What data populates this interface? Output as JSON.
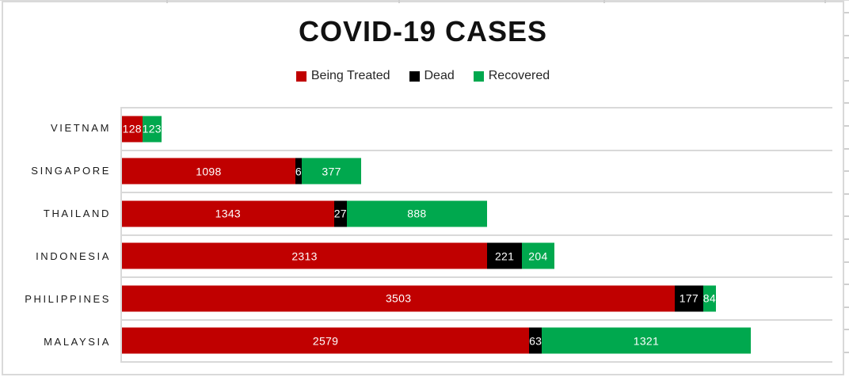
{
  "chart_data": {
    "type": "bar",
    "orientation": "horizontal",
    "stacked": true,
    "title": "COVID-19 CASES",
    "categories": [
      "VIETNAM",
      "SINGAPORE",
      "THAILAND",
      "INDONESIA",
      "PHILIPPINES",
      "MALAYSIA"
    ],
    "series": [
      {
        "name": "Being Treated",
        "color": "#c00000",
        "values": [
          128,
          1098,
          1343,
          2313,
          3503,
          2579
        ]
      },
      {
        "name": "Dead",
        "color": "#000000",
        "values": [
          0,
          6,
          27,
          221,
          177,
          63
        ]
      },
      {
        "name": "Recovered",
        "color": "#00a84e",
        "values": [
          123,
          377,
          888,
          204,
          84,
          1321
        ]
      }
    ],
    "xlim": [
      0,
      4500
    ],
    "data_labels": true,
    "data_label_color": "#ffffff",
    "legend_position": "top",
    "gridlines": "category-separators",
    "gridline_color": "#d9d9d9"
  }
}
